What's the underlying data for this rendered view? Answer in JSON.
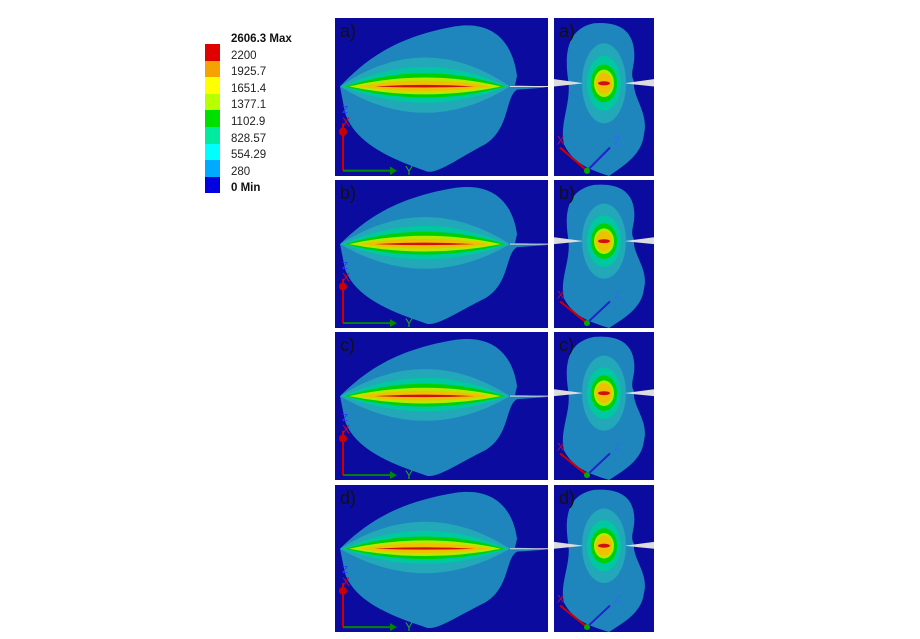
{
  "legend": {
    "entries": [
      {
        "label": "2606.3 Max",
        "color": "#e00000",
        "bold": true
      },
      {
        "label": "2200",
        "color": "#f5a300"
      },
      {
        "label": "1925.7",
        "color": "#ffff00"
      },
      {
        "label": "1651.4",
        "color": "#b8ff00"
      },
      {
        "label": "1377.1",
        "color": "#00e000"
      },
      {
        "label": "1102.9",
        "color": "#00eaa0"
      },
      {
        "label": "828.57",
        "color": "#00ffff"
      },
      {
        "label": "554.29",
        "color": "#00aaff"
      },
      {
        "label": "280",
        "color": "#0000e0"
      },
      {
        "label": "0 Min",
        "color": "",
        "bold": true
      }
    ]
  },
  "colors": {
    "background": "#0b0ba0",
    "outer": "#1f86bd",
    "band1": "#22a8b8",
    "band2": "#00c8a0",
    "band3": "#00d000",
    "band4": "#b8e800",
    "band5": "#f0c000",
    "core": "#d01010"
  },
  "panels": [
    {
      "label": "a)"
    },
    {
      "label": "b)"
    },
    {
      "label": "c)"
    },
    {
      "label": "d)"
    }
  ],
  "axes": {
    "left": [
      "Y",
      "X",
      "Z"
    ],
    "right": [
      "X",
      "Z"
    ]
  }
}
